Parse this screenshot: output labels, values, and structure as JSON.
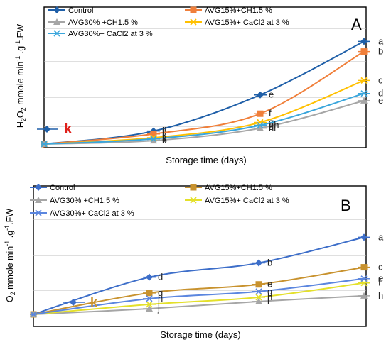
{
  "chart_data": [
    {
      "panel": "A",
      "type": "line",
      "xlabel": "Storage time (days)",
      "ylabel": {
        "prefix": "H",
        "sub1": "2",
        "mid": "O",
        "sub2": "2",
        "rest": " mmole min",
        "sup1": "-1",
        "tail": " .g",
        "sup2": "-1",
        "end": ".FW"
      },
      "grid": true,
      "x": [
        0,
        1,
        2,
        3
      ],
      "ylim": [
        0,
        4
      ],
      "series": [
        {
          "name": "Control",
          "color": "#1f5fa8",
          "marker": "diamond",
          "values": [
            0,
            0.45,
            1.7,
            3.55
          ],
          "letters": [
            "k",
            "ij",
            "e",
            "a"
          ]
        },
        {
          "name": "AVG15%+CH1.5 %",
          "color": "#f07f3a",
          "marker": "square",
          "values": [
            0,
            0.35,
            1.05,
            3.2
          ],
          "letters": [
            "",
            "j",
            "f",
            "b"
          ]
        },
        {
          "name": "AVG30% +CH1.5 %",
          "color": "#a6a6a6",
          "marker": "triangle",
          "values": [
            0,
            0.12,
            0.55,
            1.5
          ],
          "letters": [
            "",
            "k",
            "hi",
            "e"
          ]
        },
        {
          "name": "AVG15%+ CaCl2  at 3 %",
          "color": "#ffc000",
          "marker": "x",
          "values": [
            0,
            0.22,
            0.75,
            2.2
          ],
          "letters": [
            "",
            "k",
            "g",
            "c"
          ]
        },
        {
          "name": "AVG30%+  CaCl2  at 3 %",
          "color": "#3aa6dc",
          "marker": "star",
          "values": [
            0,
            0.18,
            0.65,
            1.75
          ],
          "letters": [
            "",
            "k",
            "gh",
            "d"
          ]
        }
      ]
    },
    {
      "panel": "B",
      "type": "line",
      "xlabel": "Storage time (days)",
      "ylabel": {
        "prefix": "O",
        "sub1": "2",
        "mid": "",
        "sub2": "",
        "rest": " mmole min",
        "sup1": "-1",
        "tail": " .g",
        "sup2": "-1",
        "end": ".FW"
      },
      "grid": true,
      "x": [
        0,
        1,
        2,
        3
      ],
      "ylim": [
        0,
        4
      ],
      "series": [
        {
          "name": "Control",
          "color": "#3d6ec9",
          "marker": "diamond",
          "values": [
            0,
            1.3,
            1.8,
            2.7
          ],
          "letters": [
            "k",
            "d",
            "b",
            "a"
          ]
        },
        {
          "name": "AVG15%+CH1.5 %",
          "color": "#c8922e",
          "marker": "square",
          "values": [
            0,
            0.75,
            1.05,
            1.65
          ],
          "letters": [
            "",
            "g",
            "e",
            "c"
          ]
        },
        {
          "name": "AVG30% +CH1.5 %",
          "color": "#a6a6a6",
          "marker": "triangle",
          "values": [
            0,
            0.2,
            0.45,
            0.65
          ],
          "letters": [
            "",
            "j",
            "i",
            "h"
          ]
        },
        {
          "name": "AVG15%+ CaCl2  at 3 %",
          "color": "#e4e02a",
          "marker": "x",
          "values": [
            0,
            0.35,
            0.6,
            1.1
          ],
          "letters": [
            "",
            "i",
            "h",
            "f"
          ]
        },
        {
          "name": "AVG30%+  CaCl2  at 3 %",
          "color": "#5b86df",
          "marker": "star",
          "values": [
            0,
            0.55,
            0.8,
            1.25
          ],
          "letters": [
            "",
            "h",
            "g",
            "e"
          ]
        }
      ]
    }
  ]
}
